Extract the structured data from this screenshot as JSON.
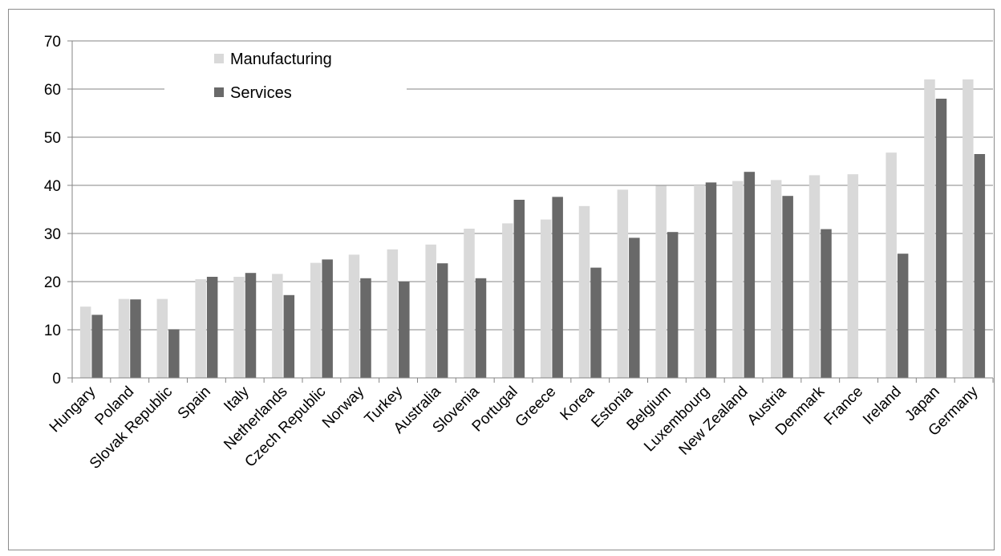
{
  "chart_data": {
    "type": "bar",
    "title": "",
    "xlabel": "",
    "ylabel": "",
    "ylim": [
      0,
      70
    ],
    "yticks": [
      0,
      10,
      20,
      30,
      40,
      50,
      60,
      70
    ],
    "grid": true,
    "legend_position": "top-left",
    "categories": [
      "Hungary",
      "Poland",
      "Slovak Republic",
      "Spain",
      "Italy",
      "Netherlands",
      "Czech Republic",
      "Norway",
      "Turkey",
      "Australia",
      "Slovenia",
      "Portugal",
      "Greece",
      "Korea",
      "Estonia",
      "Belgium",
      "Luxembourg",
      "New Zealand",
      "Austria",
      "Denmark",
      "France",
      "Ireland",
      "Japan",
      "Germany"
    ],
    "series": [
      {
        "name": "Manufacturing",
        "color": "#d9d9d9",
        "values": [
          14.8,
          16.4,
          16.4,
          20.5,
          21.0,
          21.6,
          23.9,
          25.6,
          26.7,
          27.7,
          31.0,
          32.1,
          32.9,
          35.7,
          39.1,
          39.9,
          40.0,
          40.9,
          41.1,
          42.1,
          42.3,
          46.8,
          62.0,
          62.0
        ]
      },
      {
        "name": "Services",
        "color": "#696969",
        "values": [
          13.1,
          16.3,
          10.1,
          21.0,
          21.8,
          17.2,
          24.6,
          20.7,
          20.0,
          23.8,
          20.7,
          37.0,
          37.6,
          22.9,
          29.1,
          30.3,
          40.6,
          42.8,
          37.8,
          30.9,
          null,
          25.8,
          58.0,
          46.5
        ]
      }
    ]
  }
}
